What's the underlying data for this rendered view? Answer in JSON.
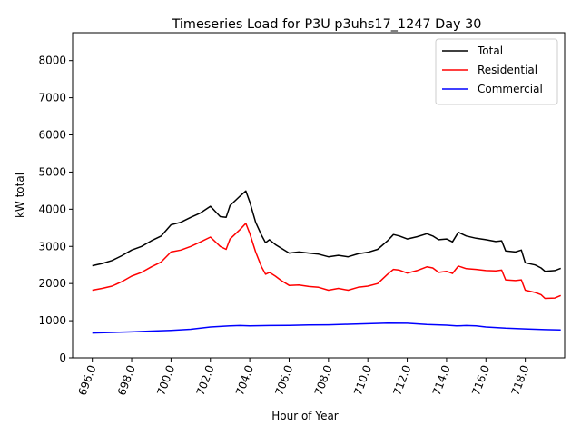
{
  "chart_data": {
    "type": "line",
    "title": "Timeseries Load for P3U p3uhs17_1247  Day 30",
    "xlabel": "Hour of Year",
    "ylabel": "kW total",
    "xlim": [
      695.0,
      720.0
    ],
    "ylim": [
      0,
      8750
    ],
    "x_ticks": [
      696,
      698,
      700,
      702,
      704,
      706,
      708,
      710,
      712,
      714,
      716,
      718
    ],
    "x_tick_labels": [
      "696.0",
      "698.0",
      "700.0",
      "702.0",
      "704.0",
      "706.0",
      "708.0",
      "710.0",
      "712.0",
      "714.0",
      "716.0",
      "718.0"
    ],
    "y_ticks": [
      0,
      1000,
      2000,
      3000,
      4000,
      5000,
      6000,
      7000,
      8000
    ],
    "y_tick_labels": [
      "0",
      "1000",
      "2000",
      "3000",
      "4000",
      "5000",
      "6000",
      "7000",
      "8000"
    ],
    "legend_position": "top-right",
    "series": [
      {
        "name": "Total",
        "color": "#000000",
        "points": [
          [
            696.0,
            2480
          ],
          [
            696.5,
            2540
          ],
          [
            697.0,
            2620
          ],
          [
            697.5,
            2750
          ],
          [
            698.0,
            2900
          ],
          [
            698.5,
            3000
          ],
          [
            699.0,
            3150
          ],
          [
            699.5,
            3280
          ],
          [
            700.0,
            3580
          ],
          [
            700.5,
            3650
          ],
          [
            701.0,
            3780
          ],
          [
            701.5,
            3900
          ],
          [
            702.0,
            4080
          ],
          [
            702.5,
            3800
          ],
          [
            702.8,
            3780
          ],
          [
            703.0,
            4100
          ],
          [
            703.5,
            4350
          ],
          [
            703.8,
            4490
          ],
          [
            704.0,
            4200
          ],
          [
            704.3,
            3650
          ],
          [
            704.6,
            3300
          ],
          [
            704.8,
            3100
          ],
          [
            705.0,
            3180
          ],
          [
            705.3,
            3050
          ],
          [
            705.6,
            2950
          ],
          [
            706.0,
            2820
          ],
          [
            706.5,
            2850
          ],
          [
            707.0,
            2820
          ],
          [
            707.5,
            2790
          ],
          [
            708.0,
            2720
          ],
          [
            708.5,
            2760
          ],
          [
            709.0,
            2720
          ],
          [
            709.5,
            2800
          ],
          [
            710.0,
            2840
          ],
          [
            710.5,
            2920
          ],
          [
            711.0,
            3150
          ],
          [
            711.3,
            3320
          ],
          [
            711.6,
            3280
          ],
          [
            712.0,
            3200
          ],
          [
            712.5,
            3260
          ],
          [
            713.0,
            3340
          ],
          [
            713.3,
            3280
          ],
          [
            713.6,
            3180
          ],
          [
            714.0,
            3200
          ],
          [
            714.3,
            3120
          ],
          [
            714.6,
            3380
          ],
          [
            715.0,
            3280
          ],
          [
            715.5,
            3220
          ],
          [
            716.0,
            3180
          ],
          [
            716.5,
            3130
          ],
          [
            716.8,
            3150
          ],
          [
            717.0,
            2880
          ],
          [
            717.5,
            2850
          ],
          [
            717.8,
            2900
          ],
          [
            718.0,
            2560
          ],
          [
            718.5,
            2500
          ],
          [
            718.8,
            2420
          ],
          [
            719.0,
            2330
          ],
          [
            719.5,
            2350
          ],
          [
            719.8,
            2410
          ]
        ]
      },
      {
        "name": "Residential",
        "color": "#ff0000",
        "points": [
          [
            696.0,
            1820
          ],
          [
            696.5,
            1870
          ],
          [
            697.0,
            1930
          ],
          [
            697.5,
            2050
          ],
          [
            698.0,
            2200
          ],
          [
            698.5,
            2300
          ],
          [
            699.0,
            2450
          ],
          [
            699.5,
            2580
          ],
          [
            700.0,
            2850
          ],
          [
            700.5,
            2900
          ],
          [
            701.0,
            3000
          ],
          [
            701.5,
            3120
          ],
          [
            702.0,
            3250
          ],
          [
            702.5,
            3000
          ],
          [
            702.8,
            2920
          ],
          [
            703.0,
            3200
          ],
          [
            703.5,
            3450
          ],
          [
            703.8,
            3620
          ],
          [
            704.0,
            3350
          ],
          [
            704.3,
            2850
          ],
          [
            704.6,
            2450
          ],
          [
            704.8,
            2250
          ],
          [
            705.0,
            2300
          ],
          [
            705.3,
            2200
          ],
          [
            705.6,
            2080
          ],
          [
            706.0,
            1950
          ],
          [
            706.5,
            1960
          ],
          [
            707.0,
            1920
          ],
          [
            707.5,
            1900
          ],
          [
            708.0,
            1820
          ],
          [
            708.5,
            1870
          ],
          [
            709.0,
            1820
          ],
          [
            709.5,
            1900
          ],
          [
            710.0,
            1930
          ],
          [
            710.5,
            2000
          ],
          [
            711.0,
            2250
          ],
          [
            711.3,
            2380
          ],
          [
            711.6,
            2360
          ],
          [
            712.0,
            2280
          ],
          [
            712.5,
            2350
          ],
          [
            713.0,
            2450
          ],
          [
            713.3,
            2420
          ],
          [
            713.6,
            2300
          ],
          [
            714.0,
            2330
          ],
          [
            714.3,
            2270
          ],
          [
            714.6,
            2470
          ],
          [
            715.0,
            2400
          ],
          [
            715.5,
            2380
          ],
          [
            716.0,
            2350
          ],
          [
            716.5,
            2340
          ],
          [
            716.8,
            2360
          ],
          [
            717.0,
            2100
          ],
          [
            717.5,
            2080
          ],
          [
            717.8,
            2100
          ],
          [
            718.0,
            1820
          ],
          [
            718.5,
            1760
          ],
          [
            718.8,
            1700
          ],
          [
            719.0,
            1600
          ],
          [
            719.5,
            1610
          ],
          [
            719.8,
            1680
          ]
        ]
      },
      {
        "name": "Commercial",
        "color": "#0000ff",
        "points": [
          [
            696.0,
            670
          ],
          [
            697.0,
            685
          ],
          [
            698.0,
            700
          ],
          [
            699.0,
            720
          ],
          [
            700.0,
            740
          ],
          [
            701.0,
            770
          ],
          [
            702.0,
            830
          ],
          [
            703.0,
            860
          ],
          [
            703.5,
            870
          ],
          [
            704.0,
            860
          ],
          [
            705.0,
            870
          ],
          [
            706.0,
            875
          ],
          [
            707.0,
            885
          ],
          [
            708.0,
            890
          ],
          [
            709.0,
            905
          ],
          [
            710.0,
            920
          ],
          [
            711.0,
            935
          ],
          [
            712.0,
            930
          ],
          [
            713.0,
            900
          ],
          [
            714.0,
            880
          ],
          [
            714.5,
            860
          ],
          [
            715.0,
            870
          ],
          [
            715.5,
            860
          ],
          [
            716.0,
            830
          ],
          [
            717.0,
            800
          ],
          [
            718.0,
            780
          ],
          [
            719.0,
            760
          ],
          [
            719.8,
            750
          ]
        ]
      }
    ]
  }
}
